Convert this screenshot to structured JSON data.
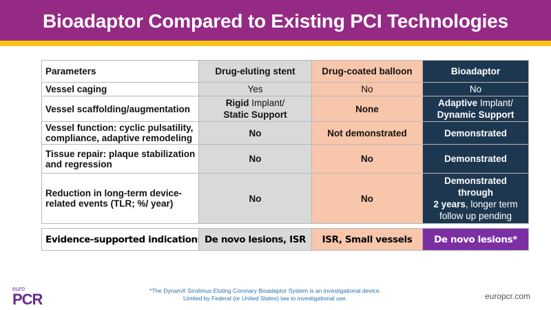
{
  "header": {
    "title": "Bioadaptor Compared to Existing PCI Technologies"
  },
  "table": {
    "columns": [
      "Parameters",
      "Drug-eluting stent",
      "Drug-coated balloon",
      "Bioadaptor"
    ],
    "rows": [
      {
        "param": "Vessel caging",
        "des": "Yes",
        "dcb": "No",
        "bio": "No"
      },
      {
        "param": "Vessel scaffolding/augmentation",
        "des_bold_1": "Rigid",
        "des_reg_1": " Implant/",
        "des_bold_2": "Static Support",
        "dcb": "None",
        "bio_bold_1": "Adaptive",
        "bio_reg_1": " Implant/",
        "bio_bold_2": "Dynamic Support"
      },
      {
        "param": "Vessel function: cyclic pulsatility, compliance, adaptive remodeling",
        "des": "No",
        "dcb": "Not demonstrated",
        "bio": "Demonstrated"
      },
      {
        "param": "Tissue repair: plaque stabilization and regression",
        "des": "No",
        "dcb": "No",
        "bio": "Demonstrated"
      },
      {
        "param": "Reduction in long-term device-related events (TLR; %/ year)",
        "des": "No",
        "dcb": "No",
        "bio_bold_1": "Demonstrated through",
        "bio_bold_2": "2 years",
        "bio_reg_2": ", longer term follow up pending"
      }
    ]
  },
  "evidence": {
    "param": "Evidence-supported indications",
    "des": "De novo lesions, ISR",
    "dcb": "ISR, Small vessels",
    "bio": "De novo lesions*"
  },
  "footer": {
    "logo_small": "euro",
    "logo_main": "PCR",
    "footnote": "*The DynamX Sirolimus Eluting Coronary Bioadaptor System is an investigational device. Limited by Federal (or United States) law to investigational use.",
    "website": "europcr.com"
  },
  "colors": {
    "header_purple": "#952a85",
    "header_stripe": "#f6c518",
    "des_gray": "#d9d9d9",
    "dcb_peach": "#f8c6ab",
    "bio_navy": "#1e3750",
    "bio_evidence_purple": "#7b2fa3"
  }
}
